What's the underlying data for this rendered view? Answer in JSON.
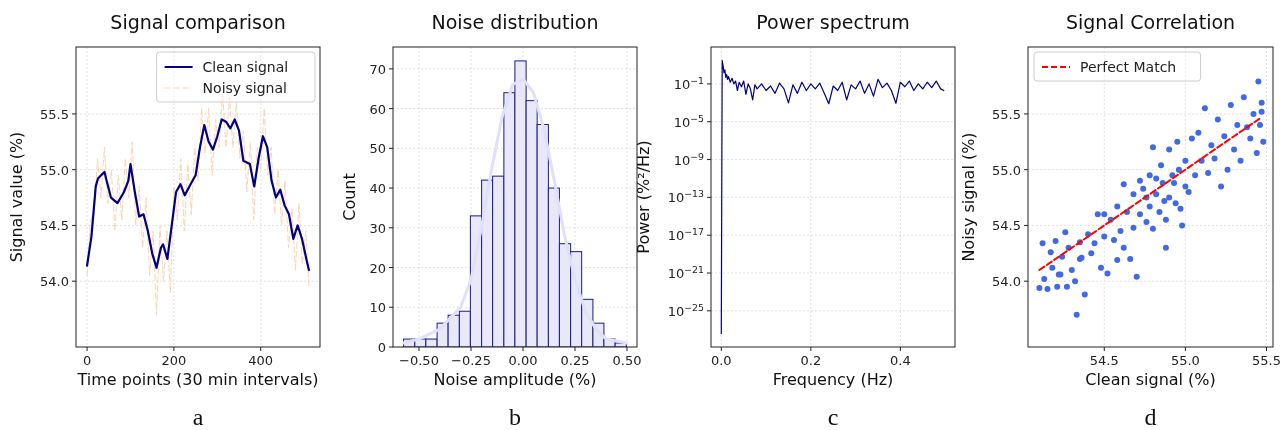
{
  "chart_data": [
    {
      "type": "line",
      "title": "Signal comparison",
      "xlabel": "Time points (30 min intervals)",
      "ylabel": "Signal value (%)",
      "annotations": [
        "a"
      ],
      "xlim": [
        -25.5,
        536.5
      ],
      "ylim": [
        53.41,
        56.1
      ],
      "xticks": [
        0,
        200,
        400
      ],
      "yticks": [
        {
          "value": 54,
          "label": "54.0"
        },
        {
          "value": 54.5,
          "label": "54.5"
        },
        {
          "value": 55,
          "label": "55.0"
        },
        {
          "value": 55.5,
          "label": "55.5"
        }
      ],
      "grid": true,
      "legend": "top right",
      "series": [
        {
          "name": "Noisy signal",
          "color": "#fdd5b1",
          "line_style": "dashed",
          "x": [
            0,
            8,
            16,
            24,
            32,
            40,
            48,
            56,
            64,
            72,
            80,
            88,
            96,
            104,
            112,
            120,
            128,
            136,
            144,
            152,
            160,
            168,
            176,
            184,
            192,
            200,
            208,
            216,
            224,
            232,
            240,
            248,
            256,
            264,
            272,
            280,
            288,
            296,
            304,
            312,
            320,
            328,
            336,
            344,
            352,
            360,
            368,
            376,
            384,
            392,
            400,
            408,
            416,
            424,
            432,
            440,
            448,
            456,
            464,
            472,
            480,
            488,
            496,
            504,
            511
          ],
          "values": [
            54.05,
            54.55,
            54.6,
            55.1,
            54.75,
            55.2,
            54.7,
            55.0,
            54.45,
            54.95,
            54.55,
            55.1,
            54.75,
            55.25,
            54.5,
            54.85,
            54.3,
            54.75,
            54.05,
            54.45,
            53.7,
            54.5,
            54.0,
            54.45,
            53.9,
            54.85,
            54.55,
            55.1,
            54.45,
            55.05,
            54.6,
            55.2,
            54.9,
            55.55,
            55.15,
            55.55,
            54.95,
            55.45,
            55.2,
            55.7,
            55.2,
            55.65,
            55.2,
            55.6,
            55.1,
            55.35,
            54.8,
            55.25,
            54.55,
            55.2,
            55.0,
            55.55,
            54.95,
            55.2,
            54.6,
            55.0,
            54.5,
            54.9,
            54.3,
            54.65,
            54.1,
            54.7,
            54.15,
            54.45,
            53.95
          ]
        },
        {
          "name": "Clean signal",
          "color": "#000080",
          "line_style": "solid",
          "x": [
            0,
            10,
            20,
            25,
            40,
            45,
            55,
            70,
            85,
            95,
            100,
            110,
            120,
            130,
            140,
            150,
            160,
            170,
            175,
            185,
            195,
            205,
            215,
            225,
            240,
            250,
            260,
            270,
            280,
            290,
            300,
            310,
            320,
            330,
            340,
            350,
            360,
            375,
            385,
            395,
            405,
            415,
            425,
            435,
            445,
            455,
            465,
            475,
            485,
            495,
            505,
            511
          ],
          "values": [
            54.14,
            54.4,
            54.85,
            54.92,
            54.98,
            54.9,
            54.75,
            54.7,
            54.8,
            54.9,
            55.05,
            54.8,
            54.58,
            54.6,
            54.45,
            54.25,
            54.12,
            54.3,
            54.33,
            54.2,
            54.5,
            54.8,
            54.87,
            54.77,
            54.88,
            54.95,
            55.2,
            55.4,
            55.25,
            55.18,
            55.3,
            55.45,
            55.43,
            55.37,
            55.45,
            55.35,
            55.08,
            55.05,
            54.85,
            55.1,
            55.3,
            55.2,
            54.9,
            54.75,
            54.82,
            54.68,
            54.6,
            54.38,
            54.5,
            54.38,
            54.2,
            54.1
          ]
        }
      ]
    },
    {
      "type": "histogram",
      "title": "Noise distribution",
      "xlabel": "Noise amplitude (%)",
      "ylabel": "Count",
      "annotations": [
        "b"
      ],
      "xlim": [
        -0.625,
        0.548
      ],
      "ylim": [
        0,
        75.5
      ],
      "xticks": [
        {
          "value": -0.5,
          "label": "−0.50"
        },
        {
          "value": -0.25,
          "label": "−0.25"
        },
        {
          "value": 0,
          "label": "0.00"
        },
        {
          "value": 0.25,
          "label": "0.25"
        },
        {
          "value": 0.5,
          "label": "0.50"
        }
      ],
      "yticks": [
        0,
        10,
        20,
        30,
        40,
        50,
        60,
        70
      ],
      "grid": true,
      "color": "#e8e8f8",
      "bins": [
        -0.574,
        -0.52,
        -0.467,
        -0.413,
        -0.36,
        -0.306,
        -0.253,
        -0.199,
        -0.146,
        -0.092,
        -0.039,
        0.015,
        0.068,
        0.122,
        0.175,
        0.229,
        0.282,
        0.336,
        0.389,
        0.443,
        0.497
      ],
      "values": [
        2,
        2,
        2,
        6,
        8,
        9,
        33,
        42,
        43,
        64,
        72,
        62,
        56,
        40,
        26,
        24,
        12,
        6,
        2,
        1
      ],
      "series": [
        {
          "type": "line",
          "color": "#e0e0f8",
          "x": [
            -0.574,
            -0.5,
            -0.4,
            -0.3,
            -0.25,
            -0.2,
            -0.15,
            -0.1,
            -0.05,
            0,
            0.05,
            0.1,
            0.15,
            0.2,
            0.25,
            0.3,
            0.35,
            0.4,
            0.497
          ],
          "values": [
            1,
            2,
            4.5,
            10,
            17,
            30,
            45,
            58,
            66,
            67.5,
            64,
            55,
            42,
            28,
            17,
            9,
            4.5,
            2,
            1
          ]
        }
      ]
    },
    {
      "type": "line",
      "title": "Power spectrum",
      "xlabel": "Frequency (Hz)",
      "ylabel": "Power (%²/Hz)",
      "annotations": [
        "c"
      ],
      "log": "y",
      "xlim": [
        -0.023,
        0.522
      ],
      "ylim": [
        1.5e-29,
        800
      ],
      "xticks": [
        {
          "value": 0,
          "label": "0.0"
        },
        0.2,
        0.4
      ],
      "yticks": [
        {
          "value": 1e-25,
          "label": "10$^{−25}$"
        },
        {
          "value": 1e-21,
          "label": "10$^{−21}$"
        },
        {
          "value": 1e-17,
          "label": "10$^{−17}$"
        },
        {
          "value": 1e-13,
          "label": "10$^{−13}$"
        },
        {
          "value": 1e-09,
          "label": "10$^{−9}$"
        },
        {
          "value": 1e-05,
          "label": "10$^{−5}$"
        },
        {
          "value": 0.1,
          "label": "10$^{−1}$"
        }
      ],
      "grid": true,
      "series": [
        {
          "color": "#000080",
          "line_style": "solid",
          "x": [
            0,
            0.002,
            0.004,
            0.006,
            0.008,
            0.01,
            0.012,
            0.014,
            0.016,
            0.02,
            0.024,
            0.028,
            0.032,
            0.036,
            0.04,
            0.045,
            0.05,
            0.055,
            0.06,
            0.065,
            0.07,
            0.075,
            0.08,
            0.09,
            0.1,
            0.11,
            0.12,
            0.13,
            0.14,
            0.15,
            0.16,
            0.17,
            0.18,
            0.19,
            0.2,
            0.21,
            0.22,
            0.23,
            0.24,
            0.25,
            0.26,
            0.27,
            0.28,
            0.29,
            0.3,
            0.31,
            0.32,
            0.33,
            0.34,
            0.35,
            0.36,
            0.37,
            0.38,
            0.39,
            0.4,
            0.41,
            0.42,
            0.43,
            0.44,
            0.45,
            0.46,
            0.47,
            0.48,
            0.49,
            0.497
          ],
          "values": [
            4e-28,
            30,
            8,
            1.5,
            3,
            0.5,
            1,
            0.3,
            0.6,
            0.15,
            0.4,
            0.1,
            0.2,
            0.02,
            0.15,
            0.05,
            0.2,
            0.008,
            0.1,
            0.03,
            0.002,
            0.08,
            0.03,
            0.1,
            0.02,
            0.06,
            0.01,
            0.12,
            0.03,
            0.001,
            0.08,
            0.01,
            0.15,
            0.02,
            0.1,
            0.03,
            0.12,
            0.01,
            0.0008,
            0.06,
            0.02,
            0.15,
            0.002,
            0.08,
            0.03,
            0.2,
            0.01,
            0.1,
            0.005,
            0.3,
            0.04,
            0.12,
            0.02,
            0.0009,
            0.15,
            0.05,
            0.2,
            0.02,
            0.1,
            0.03,
            0.15,
            0.04,
            0.2,
            0.03,
            0.02
          ]
        }
      ]
    },
    {
      "type": "scatter",
      "title": "Signal Correlation",
      "xlabel": "Clean signal (%)",
      "ylabel": "Noisy signal (%)",
      "annotations": [
        "d"
      ],
      "xlim": [
        54.03,
        55.54
      ],
      "ylim": [
        53.41,
        56.1
      ],
      "xticks": [
        {
          "value": 54.5,
          "label": "54.5"
        },
        {
          "value": 55,
          "label": "55.0"
        },
        {
          "value": 55.5,
          "label": "55.5"
        }
      ],
      "yticks": [
        {
          "value": 54,
          "label": "54.0"
        },
        {
          "value": 54.5,
          "label": "54.5"
        },
        {
          "value": 55,
          "label": "55.0"
        },
        {
          "value": 55.5,
          "label": "55.5"
        }
      ],
      "grid": true,
      "legend": "top left",
      "series": [
        {
          "color": "#4169e1",
          "marker": "circle",
          "x": [
            54.1,
            54.12,
            54.13,
            54.15,
            54.17,
            54.18,
            54.2,
            54.21,
            54.23,
            54.24,
            54.26,
            54.27,
            54.28,
            54.3,
            54.32,
            54.33,
            54.35,
            54.36,
            54.38,
            54.4,
            54.42,
            54.44,
            54.46,
            54.48,
            54.5,
            54.52,
            54.54,
            54.56,
            54.58,
            54.6,
            54.62,
            54.64,
            54.66,
            54.68,
            54.7,
            54.72,
            54.74,
            54.76,
            54.78,
            54.8,
            54.82,
            54.84,
            54.86,
            54.88,
            54.9,
            54.92,
            54.94,
            54.96,
            54.98,
            55.0,
            54.72,
            54.76,
            54.78,
            54.8,
            54.82,
            54.85,
            54.87,
            54.88,
            54.9,
            54.93,
            54.95,
            54.97,
            55.0,
            55.02,
            55.04,
            55.06,
            55.08,
            55.1,
            55.12,
            55.14,
            55.16,
            55.18,
            55.2,
            55.22,
            55.24,
            55.26,
            55.28,
            55.3,
            55.32,
            55.34,
            55.36,
            55.38,
            55.4,
            55.42,
            55.44,
            55.45,
            55.46,
            55.47,
            55.48,
            55.47,
            54.22,
            54.58,
            54.62,
            54.68,
            54.5,
            54.35
          ],
          "values": [
            53.94,
            54.34,
            54.02,
            53.93,
            54.26,
            54.12,
            54.36,
            53.95,
            54.06,
            54.22,
            54.44,
            53.95,
            54.3,
            54.1,
            54.0,
            53.7,
            54.35,
            54.21,
            53.88,
            54.42,
            54.25,
            54.34,
            54.6,
            54.12,
            54.4,
            54.07,
            54.55,
            54.37,
            54.67,
            54.45,
            54.3,
            54.62,
            54.2,
            54.48,
            54.04,
            54.6,
            54.83,
            54.75,
            54.67,
            54.47,
            54.92,
            54.62,
            54.88,
            54.55,
            54.75,
            54.95,
            54.7,
            55.0,
            54.5,
            54.85,
            54.9,
            54.53,
            54.95,
            55.2,
            54.78,
            55.04,
            54.72,
            54.3,
            55.18,
            54.88,
            55.25,
            54.65,
            55.08,
            54.8,
            55.28,
            54.95,
            55.33,
            55.08,
            55.55,
            54.97,
            55.22,
            55.1,
            55.45,
            54.85,
            55.3,
            55.0,
            55.58,
            55.18,
            55.4,
            55.08,
            55.65,
            55.38,
            55.28,
            55.5,
            55.15,
            55.79,
            55.4,
            55.6,
            55.25,
            55.52,
            54.06,
            54.19,
            54.87,
            54.78,
            54.6,
            54.2
          ]
        },
        {
          "type": "line",
          "name": "Perfect Match",
          "color": "#ff0000",
          "line_style": "dashed",
          "x": [
            54.1,
            55.47
          ],
          "values": [
            54.1,
            55.47
          ]
        }
      ]
    }
  ]
}
